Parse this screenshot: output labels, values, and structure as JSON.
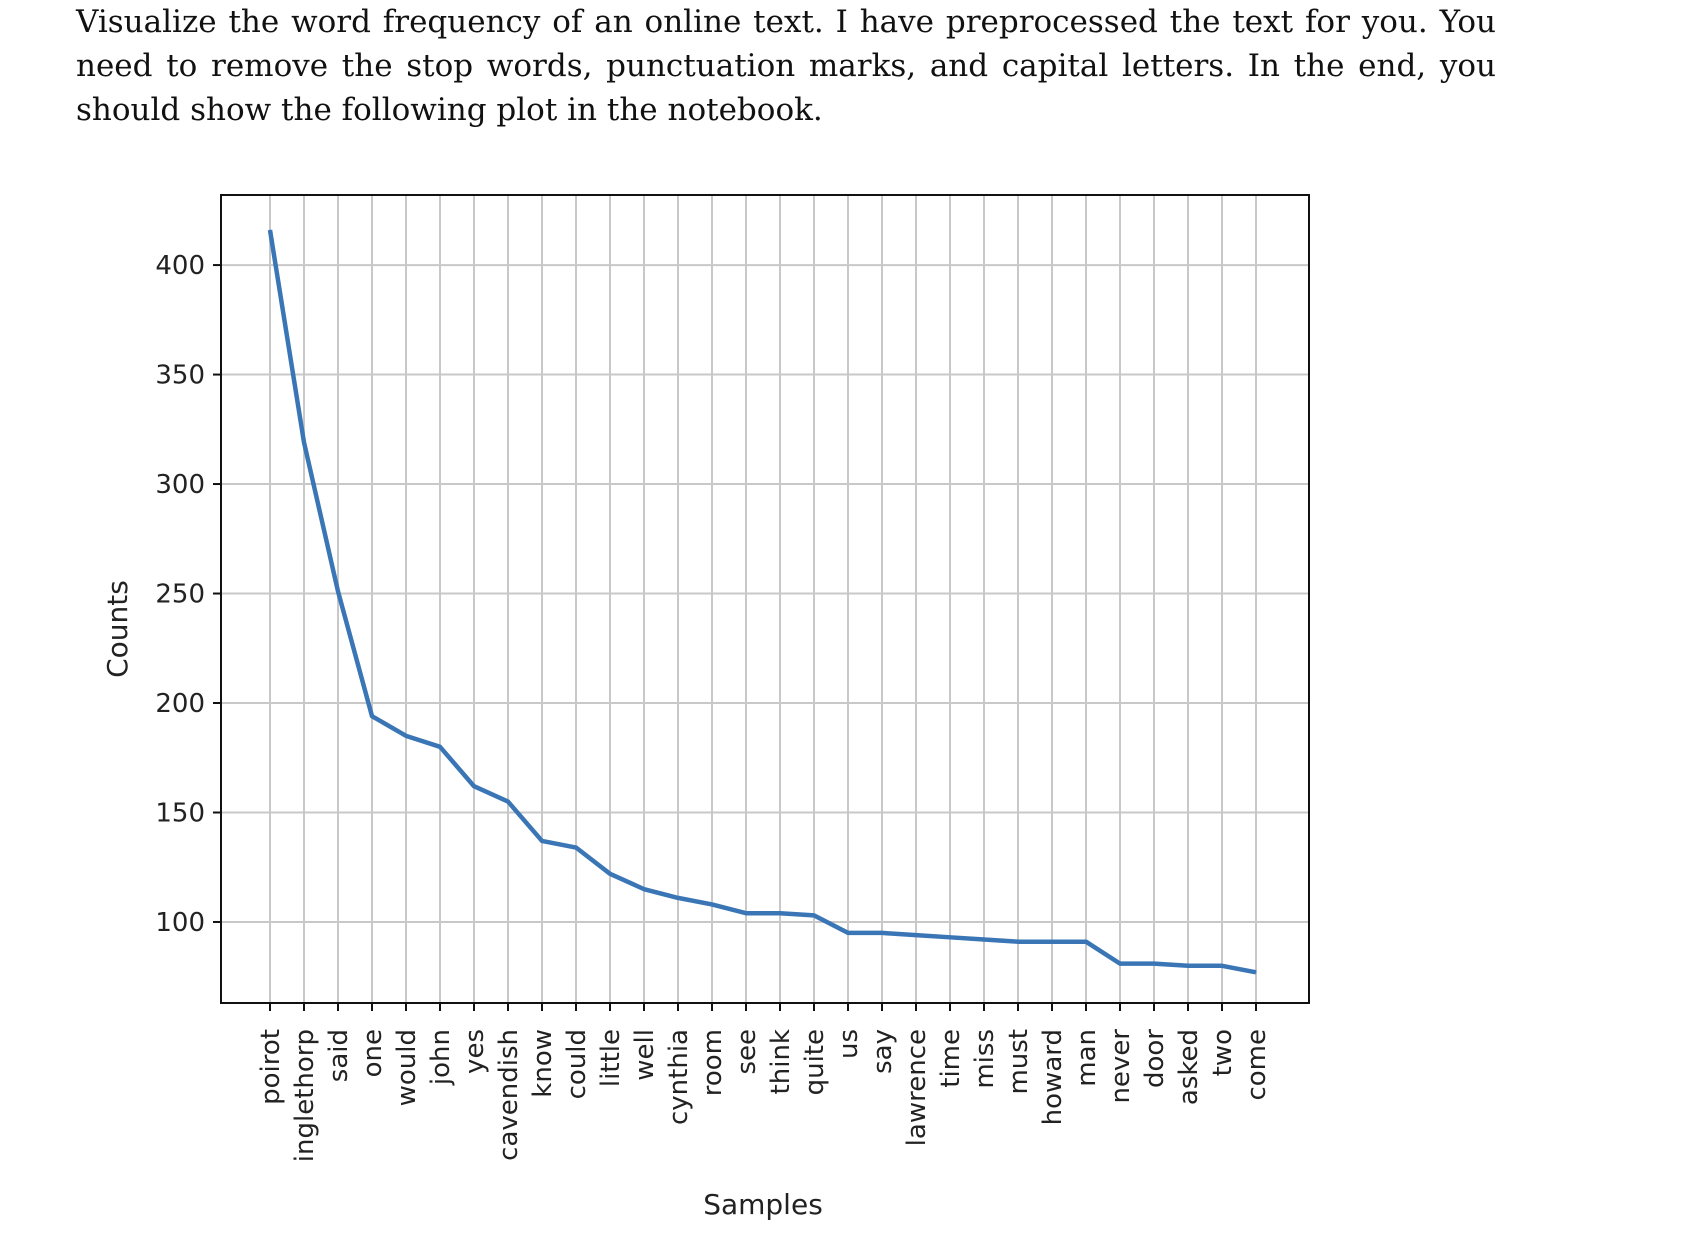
{
  "prompt": {
    "text": "Visualize the word frequency of an online text. I have preprocessed the text for you. You need to remove the stop words, punctuation marks, and capital letters. In the end, you should show the following plot in the notebook."
  },
  "chart_data": {
    "type": "line",
    "title": "",
    "xlabel": "Samples",
    "ylabel": "Counts",
    "categories": [
      "poirot",
      "inglethorp",
      "said",
      "one",
      "would",
      "john",
      "yes",
      "cavendish",
      "know",
      "could",
      "little",
      "well",
      "cynthia",
      "room",
      "see",
      "think",
      "quite",
      "us",
      "say",
      "lawrence",
      "time",
      "miss",
      "must",
      "howard",
      "man",
      "never",
      "door",
      "asked",
      "two",
      "come"
    ],
    "series": [
      {
        "values": [
          416,
          319,
          251,
          194,
          185,
          180,
          162,
          155,
          137,
          134,
          122,
          115,
          111,
          108,
          104,
          104,
          103,
          95,
          95,
          94,
          93,
          92,
          91,
          91,
          91,
          81,
          81,
          80,
          80,
          77
        ],
        "color": "#3a76b6"
      }
    ],
    "yticks": [
      100,
      150,
      200,
      250,
      300,
      350,
      400
    ],
    "ylim": [
      63,
      432
    ],
    "grid": true,
    "legend": "none"
  }
}
